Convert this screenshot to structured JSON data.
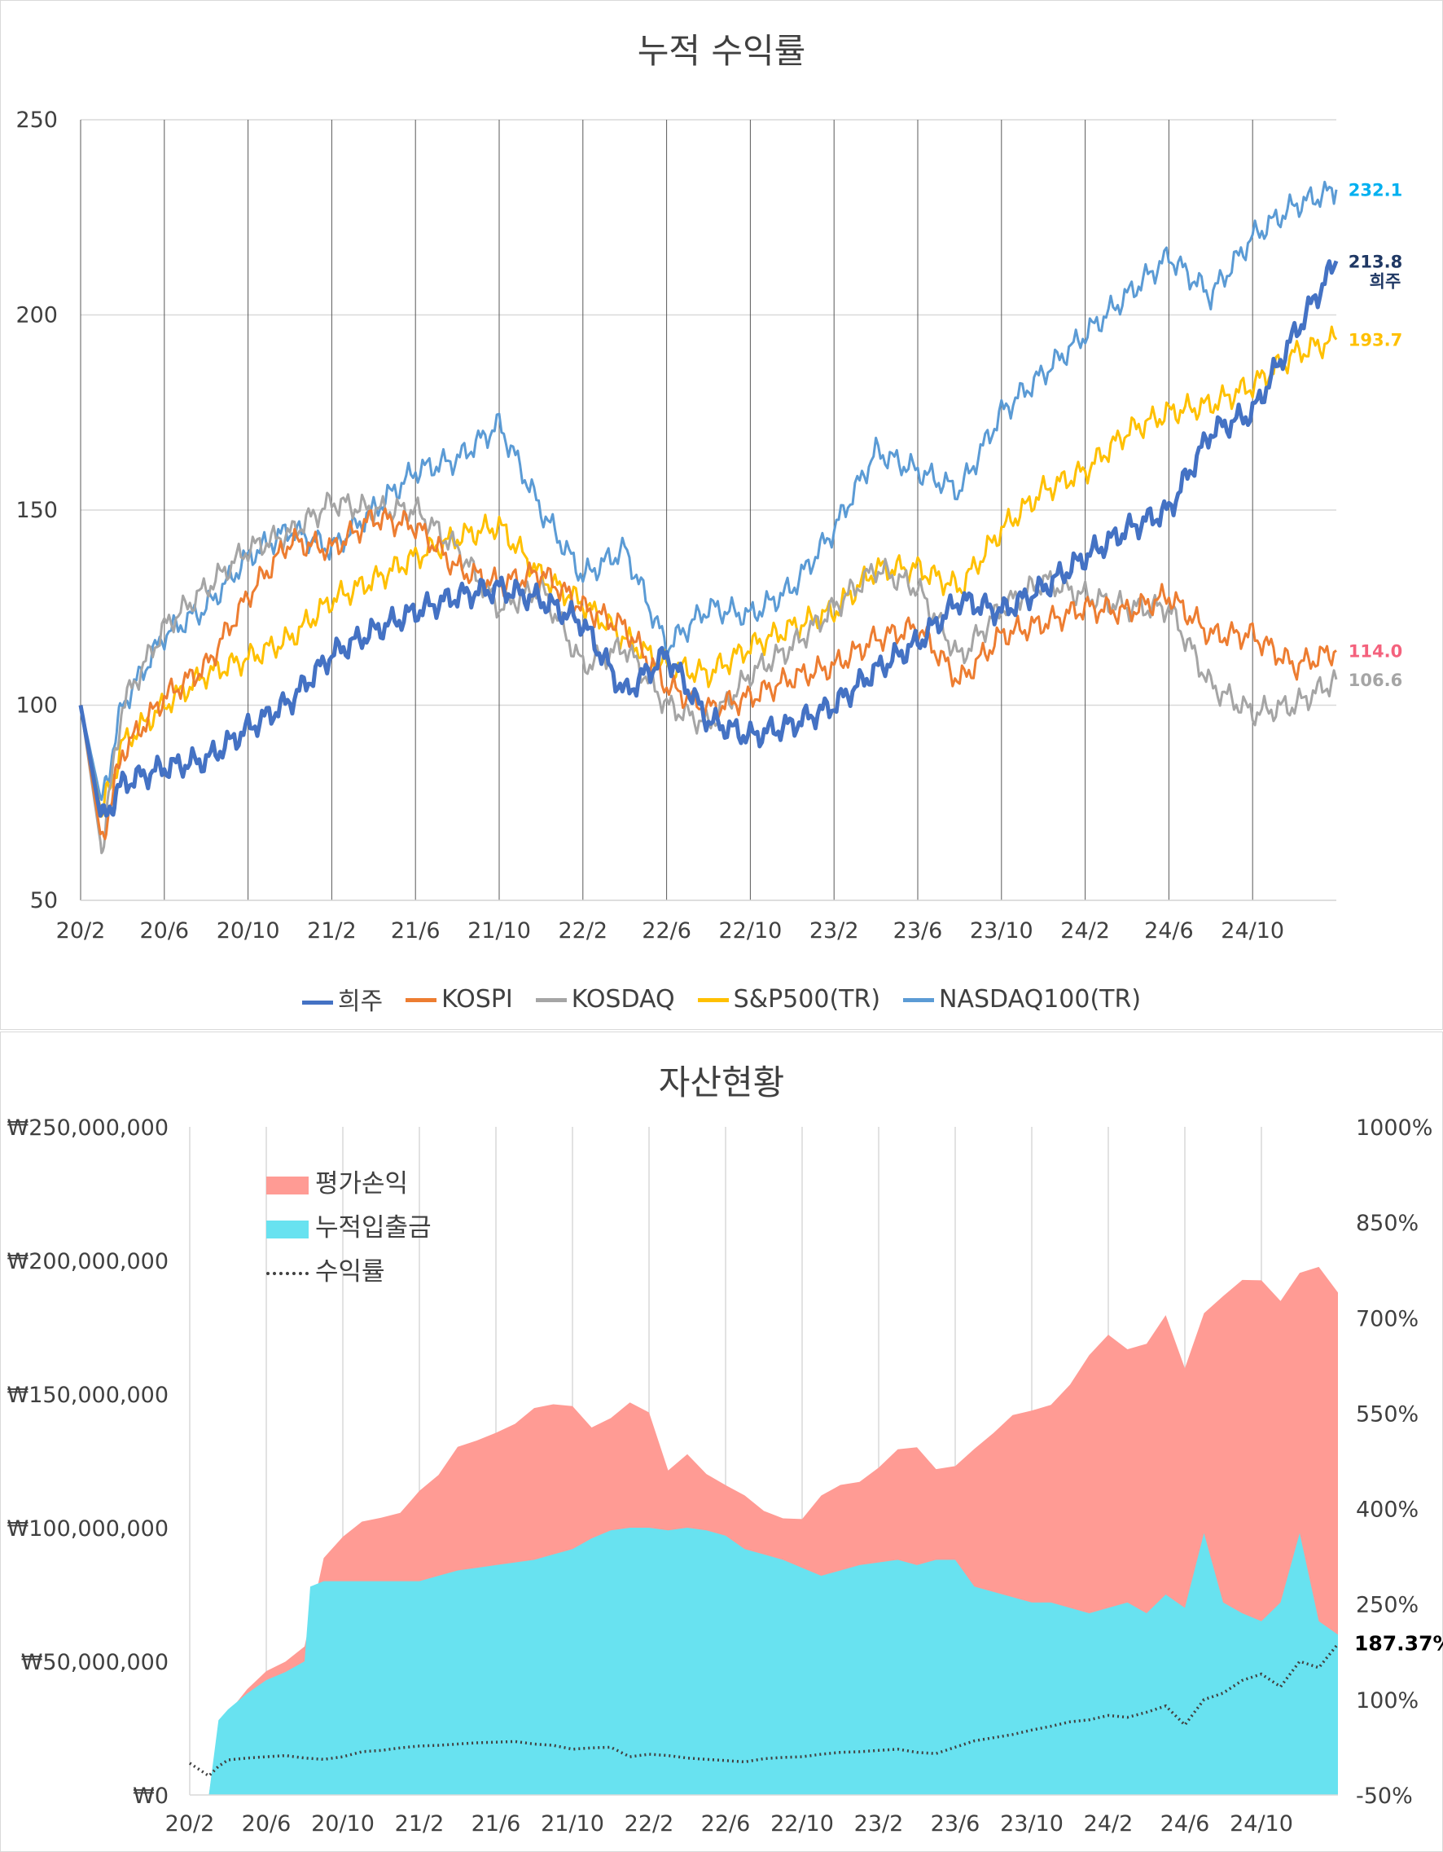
{
  "chart_data": [
    {
      "type": "line",
      "title": "누적 수익률",
      "x_ticks": [
        "20/2",
        "20/6",
        "20/10",
        "21/2",
        "21/6",
        "21/10",
        "22/2",
        "22/6",
        "22/10",
        "23/2",
        "23/6",
        "23/10",
        "24/2",
        "24/6",
        "24/10"
      ],
      "ylim": [
        50,
        250
      ],
      "y_ticks": [
        "50",
        "100",
        "150",
        "200",
        "250"
      ],
      "grid": "vertical and horizontal",
      "legend": "bottom",
      "series": [
        {
          "name": "희주",
          "color": "#4472c4",
          "width": 5,
          "end_label": "213.8",
          "sub_label": "희주",
          "label_color": "#1f3864",
          "x": [
            0,
            1,
            2,
            4,
            6,
            8,
            10,
            12,
            14,
            16,
            18,
            20,
            22,
            24,
            26,
            28,
            30,
            32,
            34,
            36,
            38,
            40,
            42,
            44,
            46,
            48,
            50,
            52,
            54,
            56,
            58,
            60
          ],
          "y": [
            100,
            70,
            80,
            84,
            86,
            94,
            101,
            113,
            119,
            124,
            128,
            130,
            127,
            121,
            103,
            113,
            96,
            92,
            95,
            100,
            109,
            116,
            127,
            124,
            130,
            138,
            145,
            150,
            170,
            175,
            195,
            213.8
          ]
        },
        {
          "name": "KOSPI",
          "color": "#ed7d31",
          "width": 3,
          "end_label": "114.0",
          "label_color": "#f4627d",
          "x": [
            0,
            1,
            2,
            4,
            6,
            8,
            10,
            12,
            14,
            16,
            18,
            20,
            22,
            24,
            26,
            28,
            30,
            32,
            34,
            36,
            38,
            40,
            42,
            44,
            46,
            48,
            50,
            52,
            54,
            56,
            58,
            60
          ],
          "y": [
            100,
            65,
            88,
            102,
            110,
            128,
            142,
            140,
            148,
            146,
            135,
            131,
            134,
            125,
            120,
            105,
            99,
            102,
            107,
            110,
            117,
            120,
            106,
            118,
            121,
            125,
            124,
            128,
            118,
            118,
            110,
            114.0
          ]
        },
        {
          "name": "KOSDAQ",
          "color": "#a5a5a5",
          "width": 3,
          "end_label": "106.6",
          "label_color": "#a5a5a5",
          "x": [
            0,
            1,
            2,
            4,
            6,
            8,
            10,
            12,
            14,
            16,
            18,
            20,
            22,
            24,
            26,
            28,
            30,
            32,
            34,
            36,
            38,
            40,
            42,
            44,
            46,
            48,
            50,
            52,
            54,
            56,
            58,
            60
          ],
          "y": [
            100,
            63,
            100,
            120,
            130,
            140,
            144,
            152,
            150,
            150,
            140,
            125,
            130,
            110,
            115,
            100,
            95,
            108,
            115,
            125,
            135,
            130,
            112,
            125,
            132,
            128,
            125,
            125,
            105,
            98,
            100,
            106.6
          ]
        },
        {
          "name": "S&P500(TR)",
          "color": "#ffc000",
          "width": 3,
          "end_label": "193.7",
          "label_color": "#ffc000",
          "x": [
            0,
            1,
            2,
            4,
            6,
            8,
            10,
            12,
            14,
            16,
            18,
            20,
            22,
            24,
            26,
            28,
            30,
            32,
            34,
            36,
            38,
            40,
            42,
            44,
            46,
            48,
            50,
            52,
            54,
            56,
            58,
            60
          ],
          "y": [
            100,
            72,
            90,
            100,
            108,
            112,
            117,
            127,
            132,
            138,
            143,
            146,
            133,
            126,
            117,
            110,
            108,
            115,
            120,
            124,
            135,
            135,
            130,
            145,
            155,
            160,
            170,
            175,
            177,
            182,
            190,
            193.7
          ]
        },
        {
          "name": "NASDAQ100(TR)",
          "color": "#5b9bd5",
          "width": 3,
          "end_label": "232.1",
          "label_color": "#00b0f0",
          "x": [
            0,
            1,
            2,
            4,
            6,
            8,
            10,
            12,
            14,
            16,
            18,
            20,
            22,
            24,
            26,
            28,
            30,
            32,
            34,
            36,
            38,
            40,
            42,
            44,
            46,
            48,
            50,
            52,
            54,
            56,
            58,
            60
          ],
          "y": [
            100,
            75,
            100,
            118,
            125,
            138,
            145,
            140,
            150,
            160,
            163,
            172,
            150,
            133,
            140,
            115,
            125,
            123,
            130,
            145,
            165,
            160,
            155,
            175,
            185,
            195,
            205,
            215,
            205,
            220,
            228,
            232.1
          ]
        }
      ]
    },
    {
      "type": "area",
      "title": "자산현황",
      "x_ticks": [
        "20/2",
        "20/6",
        "20/10",
        "21/2",
        "21/6",
        "21/10",
        "22/2",
        "22/6",
        "22/10",
        "23/2",
        "23/6",
        "23/10",
        "24/2",
        "24/6",
        "24/10"
      ],
      "y_left_ticks": [
        "₩0",
        "₩50,000,000",
        "₩100,000,000",
        "₩150,000,000",
        "₩200,000,000",
        "₩250,000,000"
      ],
      "y_right_ticks": [
        "-50%",
        "100%",
        "250%",
        "400%",
        "550%",
        "700%",
        "850%",
        "1000%"
      ],
      "ylim_left": [
        0,
        250000000
      ],
      "ylim_right": [
        -50,
        1000
      ],
      "grid": "vertical",
      "legend": "top-left",
      "end_label": "187.37%",
      "series": [
        {
          "name": "평가손익",
          "color": "#ff9b94",
          "type": "area",
          "x": [
            0,
            1,
            1.5,
            2,
            3,
            4,
            5,
            6,
            7,
            8,
            9,
            10,
            11,
            12,
            13,
            14,
            15,
            16,
            17,
            18,
            19,
            20,
            21,
            22,
            23,
            24,
            25,
            26,
            27,
            28,
            29,
            30,
            31,
            32,
            33,
            34,
            35,
            36,
            37,
            38,
            39,
            40,
            41,
            42,
            43,
            44,
            45,
            46,
            47,
            48,
            49,
            50,
            51,
            52,
            53,
            54,
            55,
            56,
            57,
            58,
            59,
            60
          ],
          "total_y": [
            0,
            0,
            28000000,
            32000000,
            38000000,
            44000000,
            50000000,
            58000000,
            90000000,
            95000000,
            100000000,
            104000000,
            108000000,
            115000000,
            118000000,
            128000000,
            133000000,
            138000000,
            140000000,
            143000000,
            144000000,
            146000000,
            140000000,
            142000000,
            145000000,
            141000000,
            122000000,
            130000000,
            121000000,
            114000000,
            110000000,
            107000000,
            106000000,
            104000000,
            110000000,
            114000000,
            118000000,
            125000000,
            130000000,
            128000000,
            120000000,
            124000000,
            132000000,
            136000000,
            140000000,
            142000000,
            147000000,
            156000000,
            165000000,
            170000000,
            165000000,
            170000000,
            182000000,
            160000000,
            178000000,
            185000000,
            194000000,
            195000000,
            185000000,
            193000000,
            196000000,
            188000000
          ]
        },
        {
          "name": "누적입출금",
          "color": "#68e2f0",
          "type": "area",
          "x": [
            0,
            1,
            1.5,
            2,
            3,
            4,
            5,
            6,
            6.3,
            7,
            8,
            9,
            10,
            11,
            12,
            13,
            14,
            15,
            16,
            17,
            18,
            19,
            20,
            21,
            22,
            23,
            24,
            25,
            26,
            27,
            28,
            29,
            30,
            31,
            32,
            33,
            34,
            35,
            36,
            37,
            38,
            39,
            40,
            41,
            42,
            43,
            44,
            45,
            46,
            47,
            48,
            49,
            50,
            51,
            52,
            53,
            54,
            55,
            56,
            57,
            58,
            59,
            60
          ],
          "y": [
            0,
            0,
            28000000,
            32000000,
            38000000,
            43000000,
            46000000,
            50000000,
            78000000,
            80000000,
            80000000,
            80000000,
            80000000,
            80000000,
            80000000,
            82000000,
            84000000,
            85000000,
            86000000,
            87000000,
            88000000,
            90000000,
            92000000,
            96000000,
            99000000,
            100000000,
            100000000,
            99000000,
            100000000,
            99000000,
            97000000,
            92000000,
            90000000,
            88000000,
            85000000,
            82000000,
            84000000,
            86000000,
            87000000,
            88000000,
            86000000,
            88000000,
            88000000,
            78000000,
            76000000,
            74000000,
            72000000,
            72000000,
            70000000,
            68000000,
            70000000,
            72000000,
            68000000,
            75000000,
            70000000,
            98000000,
            72000000,
            68000000,
            65000000,
            72000000,
            98000000,
            65000000,
            60000000
          ]
        },
        {
          "name": "수익률",
          "color": "#404040",
          "type": "line-dotted",
          "x": [
            0,
            1,
            1.5,
            2,
            3,
            4,
            5,
            6,
            7,
            8,
            9,
            10,
            11,
            12,
            13,
            14,
            15,
            16,
            17,
            18,
            19,
            20,
            21,
            22,
            23,
            24,
            25,
            26,
            27,
            28,
            29,
            30,
            31,
            32,
            33,
            34,
            35,
            36,
            37,
            38,
            39,
            40,
            41,
            42,
            43,
            44,
            45,
            46,
            47,
            48,
            49,
            50,
            51,
            52,
            53,
            54,
            55,
            56,
            57,
            58,
            59,
            60
          ],
          "y": [
            0,
            -20,
            -5,
            5,
            8,
            10,
            12,
            8,
            6,
            10,
            18,
            20,
            24,
            27,
            28,
            30,
            32,
            33,
            34,
            30,
            28,
            22,
            24,
            25,
            10,
            14,
            12,
            8,
            6,
            4,
            2,
            7,
            9,
            10,
            14,
            17,
            18,
            20,
            22,
            17,
            15,
            25,
            35,
            40,
            45,
            52,
            58,
            65,
            68,
            75,
            72,
            80,
            90,
            60,
            100,
            110,
            130,
            140,
            120,
            160,
            150,
            187.37
          ]
        }
      ]
    }
  ]
}
